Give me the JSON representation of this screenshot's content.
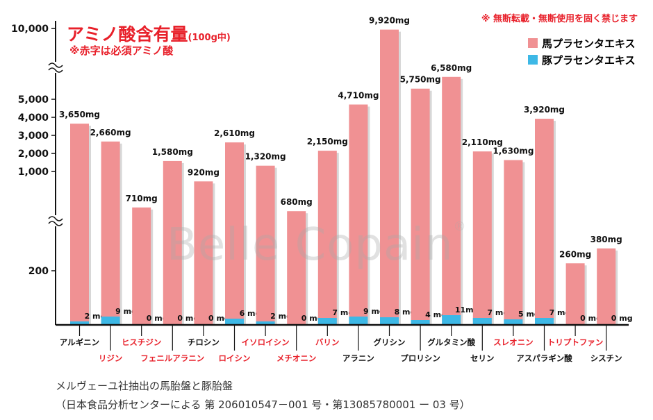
{
  "header": {
    "title": "アミノ酸含有量",
    "title_unit": "(100g中)",
    "subtitle": "※赤字は必須アミノ酸",
    "notice": "※ 無断転載・無断使用を固く禁じます"
  },
  "watermark": {
    "text": "Belle Copain",
    "mark": "®"
  },
  "footer": {
    "line1": "メルヴェーユ社抽出の馬胎盤と豚胎盤",
    "line2": "（日本食品分析センターによる 第 206010547－001 号・第13085780001 ー 03 号）"
  },
  "colors": {
    "horse": "#f09193",
    "pig": "#3db8e6",
    "essential_label": "#e8202a",
    "normal_label": "#111111"
  },
  "chart_data": {
    "type": "bar",
    "title": "アミノ酸含有量",
    "categories": [
      "アルギニン",
      "リジン",
      "ヒスチジン",
      "フェニルアラニン",
      "チロシン",
      "ロイシン",
      "イソロイシン",
      "メチオニン",
      "バリン",
      "アラニン",
      "グリシン",
      "プロリシン",
      "グルタミン酸",
      "セリン",
      "スレオニン",
      "アスパラギン酸",
      "トリプトファン",
      "シスチン"
    ],
    "essential": [
      false,
      true,
      true,
      true,
      false,
      true,
      true,
      true,
      true,
      false,
      false,
      false,
      false,
      false,
      true,
      false,
      true,
      false
    ],
    "series": [
      {
        "name": "馬プラセンタエキス",
        "values": [
          3650,
          2660,
          710,
          1580,
          920,
          2610,
          1320,
          680,
          2150,
          4710,
          9920,
          5750,
          6580,
          2110,
          1630,
          3920,
          260,
          380
        ]
      },
      {
        "name": "豚プラセンタエキス",
        "values": [
          2,
          9,
          0,
          0,
          0,
          6,
          2,
          0,
          7,
          9,
          8,
          4,
          11,
          7,
          5,
          7,
          0,
          0
        ]
      }
    ],
    "value_labels": [
      "3,650mg",
      "2,660mg",
      "710mg",
      "1,580mg",
      "920mg",
      "2,610mg",
      "1,320mg",
      "680mg",
      "2,150mg",
      "4,710mg",
      "9,920mg",
      "5,750mg",
      "6,580mg",
      "2,110mg",
      "1,630mg",
      "3,920mg",
      "260mg",
      "380mg"
    ],
    "pig_labels": [
      "2 mg",
      "9 mg",
      "0 mg",
      "0 mg",
      "0 mg",
      "6 mg",
      "2 mg",
      "0 mg",
      "7 mg",
      "9 mg",
      "8 mg",
      "4 mg",
      "11mg",
      "7 mg",
      "5 mg",
      "7 mg",
      "0 mg",
      "0 mg"
    ],
    "y_ticks": [
      {
        "label": "10,000",
        "value": 10000
      },
      {
        "label": "5,000",
        "value": 5000
      },
      {
        "label": "4,000",
        "value": 4000
      },
      {
        "label": "3,000",
        "value": 3000
      },
      {
        "label": "2,000",
        "value": 2000
      },
      {
        "label": "1,000",
        "value": 1000
      },
      {
        "label": "200",
        "value": 200
      }
    ],
    "axis_breaks": true,
    "legend_position": "top-right"
  }
}
